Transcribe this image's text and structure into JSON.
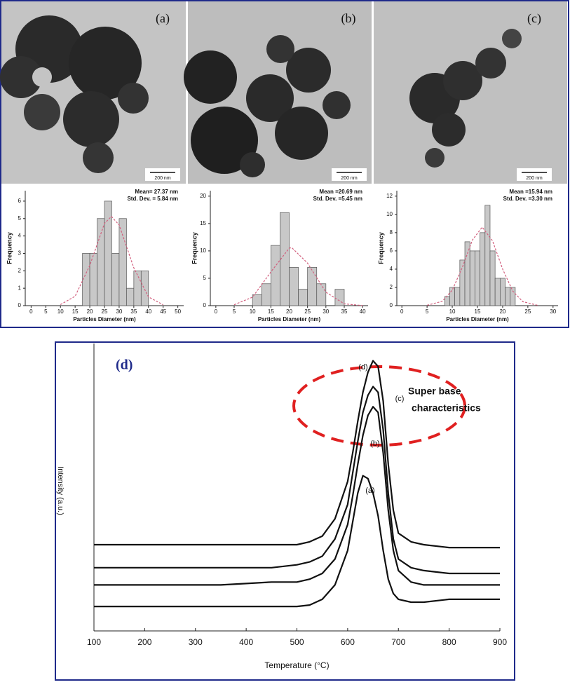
{
  "images": [
    {
      "label": "(a)",
      "scale": "200 nm"
    },
    {
      "label": "(b)",
      "scale": "200 nm"
    },
    {
      "label": "(c)",
      "scale": "200 nm"
    }
  ],
  "chart_data": [
    {
      "type": "histogram",
      "xlabel": "Particles Diameter (nm)",
      "ylabel": "Frequency",
      "stats": [
        "Mean= 27.37 nm",
        "Std. Dev. = 5.84 nm"
      ],
      "bins": [
        17.5,
        20,
        22.5,
        25,
        27.5,
        30,
        32.5,
        35,
        37.5,
        40
      ],
      "counts": [
        3,
        3,
        5,
        6,
        3,
        5,
        1,
        2,
        2
      ],
      "color": "#c8c8c8",
      "fit": {
        "color": "#d2607e",
        "x": [
          10,
          15,
          20,
          25,
          27.37,
          30,
          35,
          40,
          45
        ],
        "y": [
          0.06,
          0.54,
          2.31,
          4.72,
          5.12,
          4.63,
          2.17,
          0.5,
          0.05
        ]
      },
      "xlim": [
        -2,
        52
      ],
      "xticks": [
        0,
        5,
        10,
        15,
        20,
        25,
        30,
        35,
        40,
        45,
        50
      ],
      "ylim": [
        0,
        6.6
      ],
      "yticks": [
        0,
        1,
        2,
        3,
        4,
        5,
        6
      ]
    },
    {
      "type": "histogram",
      "xlabel": "Particles Diameter (nm)",
      "ylabel": "Frequency",
      "stats": [
        "Mean =20.69 nm",
        "Std. Dev. =5.45 nm"
      ],
      "bins": [
        10,
        12.5,
        15,
        17.5,
        20,
        22.5,
        25,
        27.5,
        30,
        32.5,
        35
      ],
      "counts": [
        2,
        4,
        11,
        17,
        7,
        3,
        7,
        4,
        0,
        3
      ],
      "color": "#c8c8c8",
      "fit": {
        "color": "#d2607e",
        "x": [
          5,
          10,
          15,
          20,
          20.69,
          25,
          30,
          35,
          40
        ],
        "y": [
          0.17,
          1.55,
          6.15,
          10.5,
          10.6,
          7.76,
          2.46,
          0.33,
          0.02
        ]
      },
      "xlim": [
        -1.5,
        41.5
      ],
      "xticks": [
        0,
        5,
        10,
        15,
        20,
        25,
        30,
        35,
        40
      ],
      "ylim": [
        0,
        21
      ],
      "yticks": [
        0,
        5,
        10,
        15,
        20
      ]
    },
    {
      "type": "histogram",
      "xlabel": "Particles Diameter (nm)",
      "ylabel": "Frequency",
      "stats": [
        "Mean =15.94 nm",
        "Std. Dev. =3.30 nm"
      ],
      "bins": [
        8.5,
        9.5,
        10.5,
        11.5,
        12.5,
        13.5,
        14.5,
        15.5,
        16.5,
        17.5,
        18.5,
        19.5,
        20.5,
        21.5,
        22.5
      ],
      "counts": [
        1,
        2,
        2,
        5,
        7,
        6,
        6,
        8,
        11,
        6,
        3,
        3,
        2,
        2
      ],
      "color": "#c8c8c8",
      "fit": {
        "color": "#d2607e",
        "x": [
          5,
          8,
          10,
          12,
          14,
          15.94,
          18,
          20,
          22,
          24,
          27
        ],
        "y": [
          0.04,
          0.47,
          1.7,
          4.2,
          7.2,
          8.6,
          7.1,
          4.0,
          1.6,
          0.44,
          0.03
        ]
      },
      "xlim": [
        -1,
        31
      ],
      "xticks": [
        0,
        5,
        10,
        15,
        20,
        25,
        30
      ],
      "ylim": [
        0,
        12.6
      ],
      "yticks": [
        0,
        2,
        4,
        6,
        8,
        10,
        12
      ]
    },
    {
      "type": "line",
      "title": "(d)",
      "xlabel": "Temperature (°C)",
      "ylabel": "Intensity (a.u.)",
      "annotations": [
        "Super base",
        "characteristics"
      ],
      "x": [
        100,
        150,
        200,
        250,
        300,
        350,
        400,
        450,
        500,
        525,
        550,
        575,
        600,
        610,
        620,
        630,
        640,
        650,
        660,
        670,
        680,
        690,
        700,
        725,
        750,
        800,
        850,
        900
      ],
      "series": [
        {
          "name": "(a)",
          "color": "#111111",
          "values": [
            8.5,
            8.5,
            8.5,
            8.5,
            8.5,
            8.5,
            8.5,
            8.5,
            8.5,
            9,
            11,
            16,
            28,
            38,
            48,
            54,
            53,
            48,
            40,
            28,
            18,
            13,
            11,
            10,
            10,
            11,
            11,
            11
          ]
        },
        {
          "name": "(b)",
          "color": "#111111",
          "values": [
            16,
            16,
            16,
            16,
            16,
            16,
            16.5,
            17,
            17,
            18,
            20,
            25,
            37,
            47,
            58,
            68,
            75,
            78,
            76,
            62,
            42,
            28,
            21,
            17,
            16,
            16,
            16,
            16
          ]
        },
        {
          "name": "(c)",
          "color": "#111111",
          "values": [
            22,
            22,
            22,
            22,
            22,
            22,
            22,
            22,
            23,
            24,
            26,
            32,
            44,
            55,
            66,
            76,
            82,
            85,
            83,
            70,
            48,
            32,
            25,
            22,
            21,
            20,
            20,
            20
          ]
        },
        {
          "name": "(d)",
          "color": "#111111",
          "values": [
            30,
            30,
            30,
            30,
            30,
            30,
            30,
            30,
            30,
            31,
            33,
            39,
            52,
            62,
            73,
            83,
            90,
            94,
            92,
            80,
            58,
            42,
            34,
            31,
            30,
            29,
            29,
            29
          ]
        }
      ],
      "xlim": [
        100,
        900
      ],
      "xticks": [
        100,
        200,
        300,
        400,
        500,
        600,
        700,
        800,
        900
      ],
      "ylim": [
        0,
        100
      ]
    }
  ]
}
